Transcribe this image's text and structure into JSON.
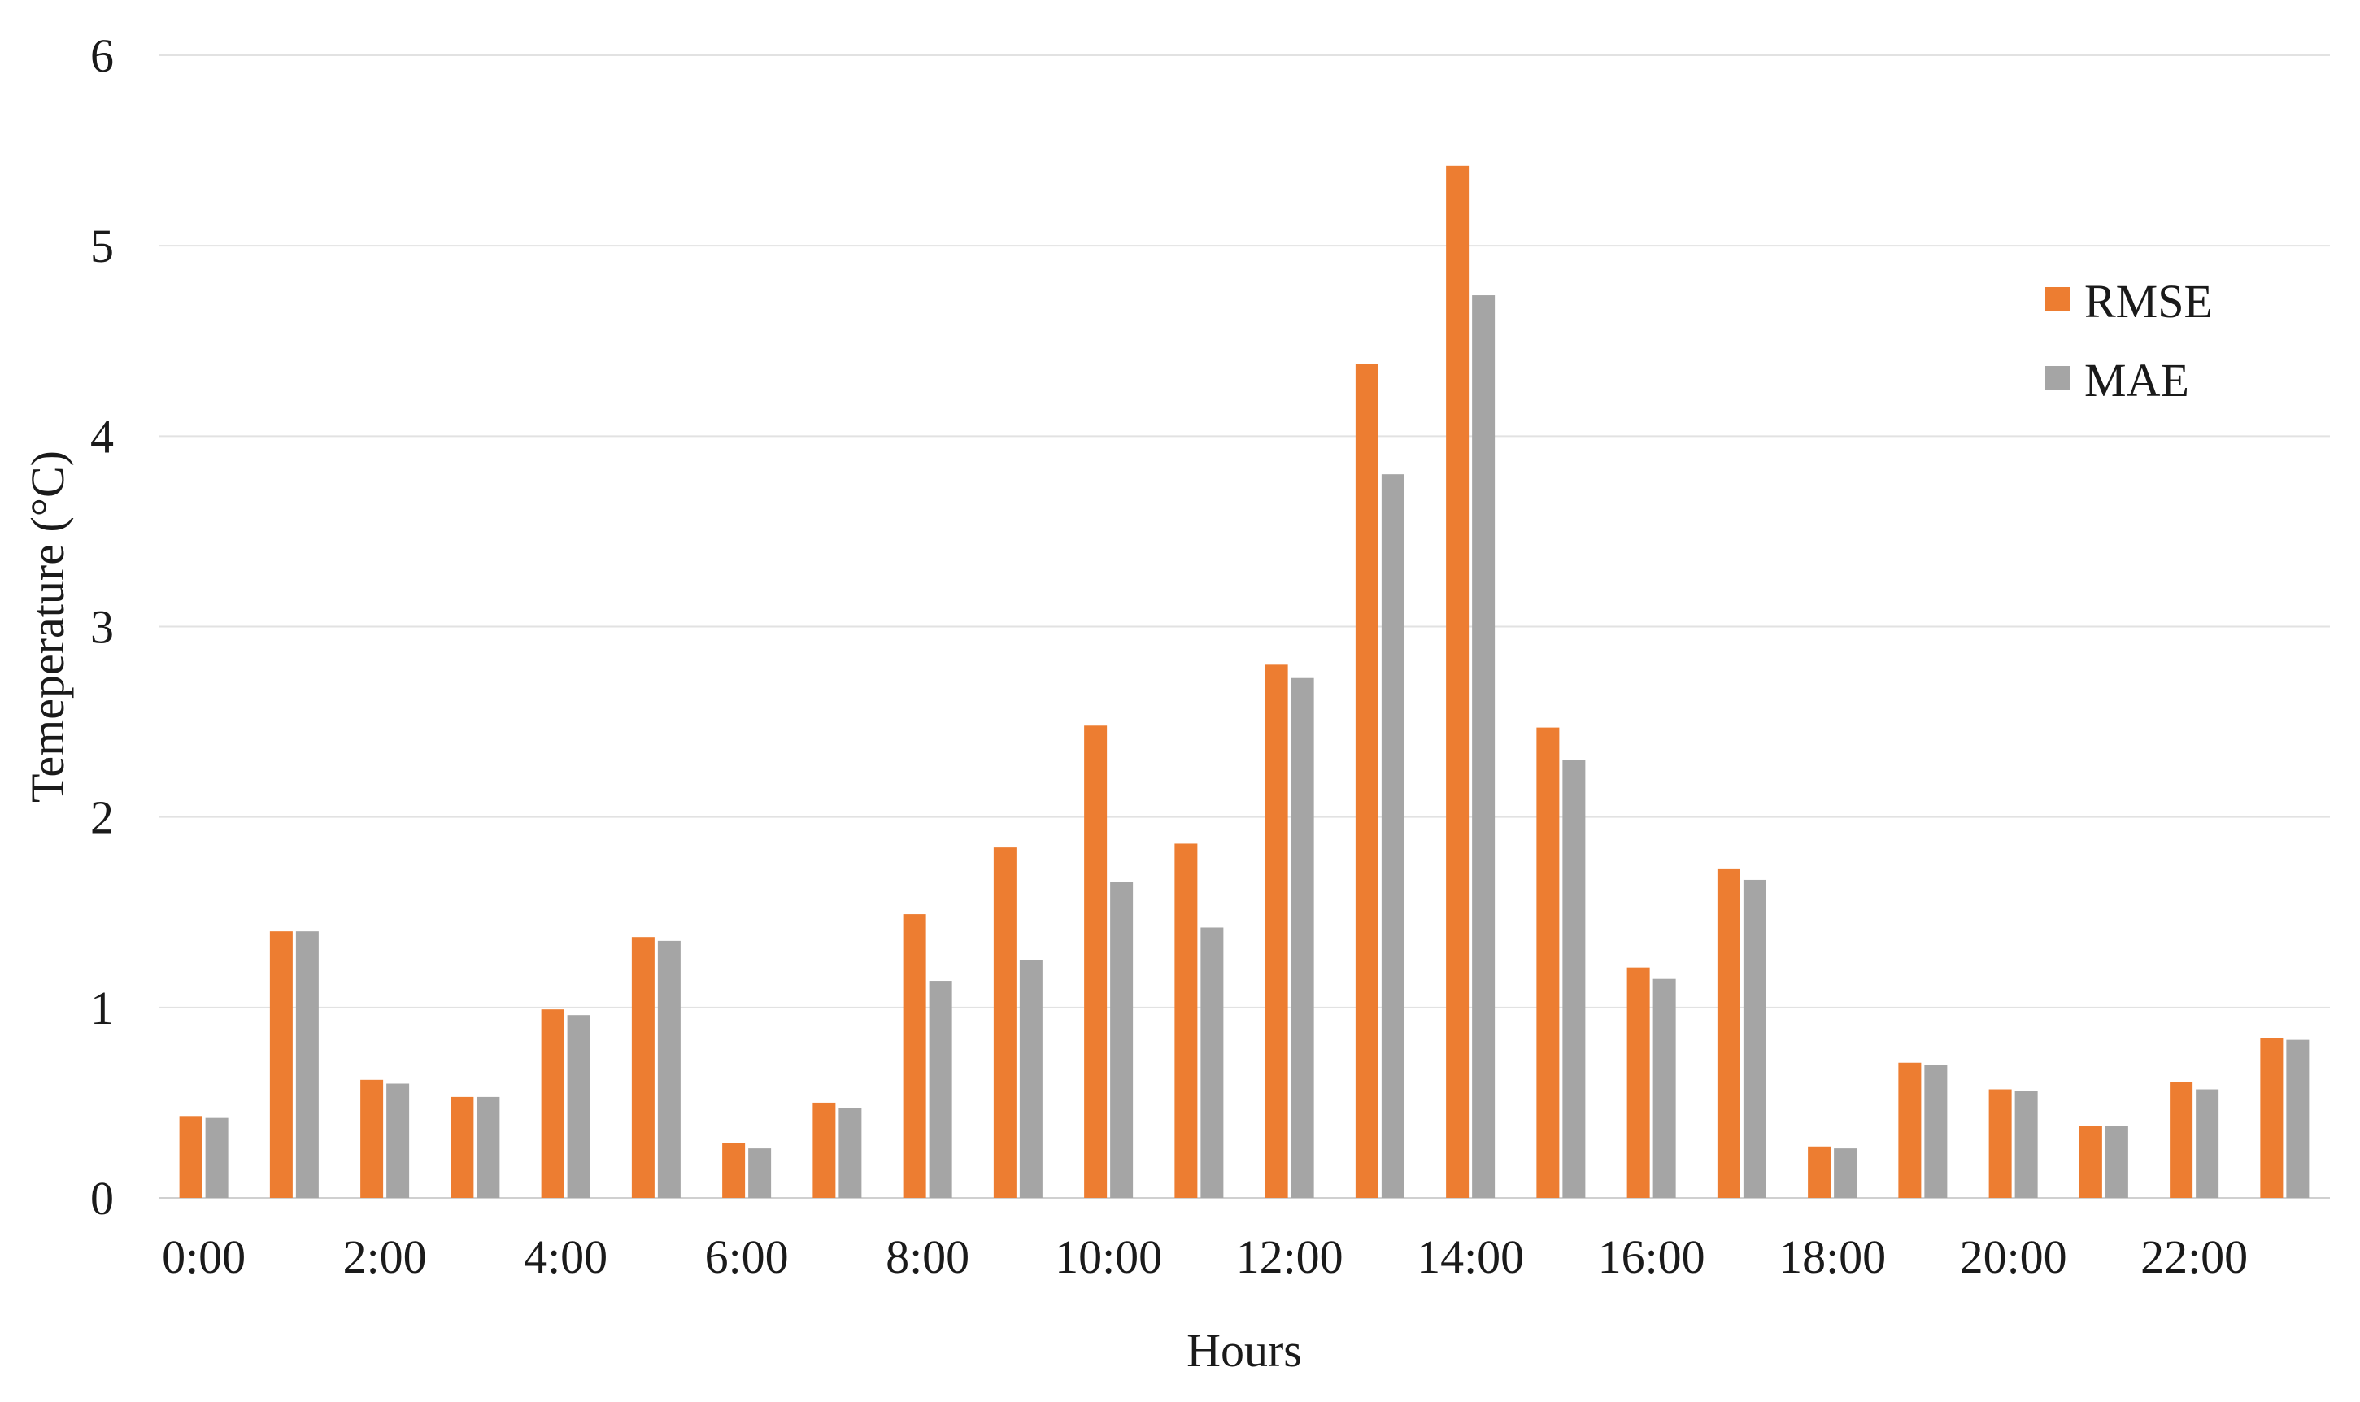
{
  "chart_data": {
    "type": "bar",
    "title": "",
    "xlabel": "Hours",
    "ylabel": "Temeperature (°C)",
    "ylim": [
      0,
      6
    ],
    "yticks": [
      "0",
      "1",
      "2",
      "3",
      "4",
      "5",
      "6"
    ],
    "categories": [
      "0:00",
      "1:00",
      "2:00",
      "3:00",
      "4:00",
      "5:00",
      "6:00",
      "7:00",
      "8:00",
      "9:00",
      "10:00",
      "11:00",
      "12:00",
      "13:00",
      "14:00",
      "15:00",
      "16:00",
      "17:00",
      "18:00",
      "19:00",
      "20:00",
      "21:00",
      "22:00",
      "23:00"
    ],
    "xtick_labels": [
      "0:00",
      "",
      "2:00",
      "",
      "4:00",
      "",
      "6:00",
      "",
      "8:00",
      "",
      "10:00",
      "",
      "12:00",
      "",
      "14:00",
      "",
      "16:00",
      "",
      "18:00",
      "",
      "20:00",
      "",
      "22:00",
      ""
    ],
    "grid": "horizontal",
    "legend_position": "top-right",
    "series": [
      {
        "name": "RMSE",
        "color": "#ED7D31",
        "values": [
          0.43,
          1.4,
          0.62,
          0.53,
          0.99,
          1.37,
          0.29,
          0.5,
          1.49,
          1.84,
          2.48,
          1.86,
          2.8,
          4.38,
          5.42,
          2.47,
          1.21,
          1.73,
          0.27,
          0.71,
          0.57,
          0.38,
          0.61,
          0.84
        ]
      },
      {
        "name": "MAE",
        "color": "#A5A5A5",
        "values": [
          0.42,
          1.4,
          0.6,
          0.53,
          0.96,
          1.35,
          0.26,
          0.47,
          1.14,
          1.25,
          1.66,
          1.42,
          2.73,
          3.8,
          4.74,
          2.3,
          1.15,
          1.67,
          0.26,
          0.7,
          0.56,
          0.38,
          0.57,
          0.83
        ]
      }
    ]
  }
}
